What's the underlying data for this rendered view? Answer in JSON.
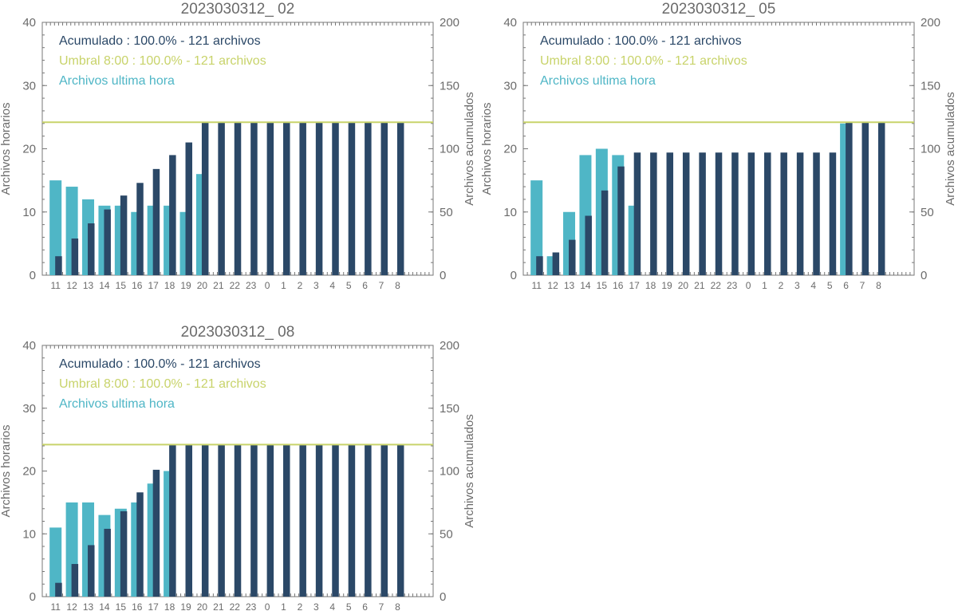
{
  "colors": {
    "hourly": "#4fb6c6",
    "cumulative": "#2b4867",
    "threshold": "#c8d36a",
    "axis": "#777777",
    "text": "#6b6b6b"
  },
  "chart_data": [
    {
      "type": "bar",
      "title": "2023030312_ 02",
      "ylabel": "Archivos horarios",
      "y2label": "Archivos acumulados",
      "ylim": [
        0,
        40
      ],
      "y2lim": [
        0,
        200
      ],
      "yticks": [
        "0",
        "10",
        "20",
        "30",
        "40"
      ],
      "y2ticks": [
        "0",
        "50",
        "100",
        "150",
        "200"
      ],
      "categories": [
        "11",
        "12",
        "13",
        "14",
        "15",
        "16",
        "17",
        "18",
        "19",
        "20",
        "21",
        "22",
        "23",
        "0",
        "1",
        "2",
        "3",
        "4",
        "5",
        "6",
        "7",
        "8"
      ],
      "legend": [
        {
          "text": "Acumulado : 100.0% - 121 archivos",
          "color": "#2b4867"
        },
        {
          "text": "Umbral 8:00 : 100.0% - 121 archivos",
          "color": "#c8d36a"
        },
        {
          "text": "Archivos ultima hora",
          "color": "#4fb6c6"
        }
      ],
      "threshold": 121,
      "series": [
        {
          "name": "Archivos ultima hora",
          "axis": "left",
          "values": [
            15,
            14,
            12,
            11,
            11,
            10,
            11,
            11,
            10,
            16,
            null,
            null,
            null,
            null,
            null,
            null,
            null,
            null,
            null,
            null,
            null,
            null
          ]
        },
        {
          "name": "Acumulado",
          "axis": "right",
          "values": [
            15,
            29,
            41,
            52,
            63,
            73,
            84,
            95,
            105,
            121,
            121,
            121,
            121,
            121,
            121,
            121,
            121,
            121,
            121,
            121,
            121,
            121
          ]
        }
      ]
    },
    {
      "type": "bar",
      "title": "2023030312_ 05",
      "ylabel": "Archivos horarios",
      "y2label": "Archivos acumulados",
      "ylim": [
        0,
        40
      ],
      "y2lim": [
        0,
        200
      ],
      "yticks": [
        "0",
        "10",
        "20",
        "30",
        "40"
      ],
      "y2ticks": [
        "0",
        "50",
        "100",
        "150",
        "200"
      ],
      "categories": [
        "11",
        "12",
        "13",
        "14",
        "15",
        "16",
        "17",
        "18",
        "19",
        "20",
        "21",
        "22",
        "23",
        "0",
        "1",
        "2",
        "3",
        "4",
        "5",
        "6",
        "7",
        "8"
      ],
      "legend": [
        {
          "text": "Acumulado : 100.0% - 121 archivos",
          "color": "#2b4867"
        },
        {
          "text": "Umbral 8:00 : 100.0% - 121 archivos",
          "color": "#c8d36a"
        },
        {
          "text": "Archivos ultima hora",
          "color": "#4fb6c6"
        }
      ],
      "threshold": 121,
      "series": [
        {
          "name": "Archivos ultima hora",
          "axis": "left",
          "values": [
            15,
            3,
            10,
            19,
            20,
            19,
            11,
            null,
            null,
            null,
            null,
            null,
            null,
            null,
            null,
            null,
            null,
            null,
            null,
            24,
            null,
            null
          ]
        },
        {
          "name": "Acumulado",
          "axis": "right",
          "values": [
            15,
            18,
            28,
            47,
            67,
            86,
            97,
            97,
            97,
            97,
            97,
            97,
            97,
            97,
            97,
            97,
            97,
            97,
            97,
            121,
            121,
            121
          ]
        }
      ]
    },
    {
      "type": "bar",
      "title": "2023030312_ 08",
      "ylabel": "Archivos horarios",
      "y2label": "Archivos acumulados",
      "ylim": [
        0,
        40
      ],
      "y2lim": [
        0,
        200
      ],
      "yticks": [
        "0",
        "10",
        "20",
        "30",
        "40"
      ],
      "y2ticks": [
        "0",
        "50",
        "100",
        "150",
        "200"
      ],
      "categories": [
        "11",
        "12",
        "13",
        "14",
        "15",
        "16",
        "17",
        "18",
        "19",
        "20",
        "21",
        "22",
        "23",
        "0",
        "1",
        "2",
        "3",
        "4",
        "5",
        "6",
        "7",
        "8"
      ],
      "legend": [
        {
          "text": "Acumulado : 100.0% - 121 archivos",
          "color": "#2b4867"
        },
        {
          "text": "Umbral 8:00 : 100.0% - 121 archivos",
          "color": "#c8d36a"
        },
        {
          "text": "Archivos ultima hora",
          "color": "#4fb6c6"
        }
      ],
      "threshold": 121,
      "series": [
        {
          "name": "Archivos ultima hora",
          "axis": "left",
          "values": [
            11,
            15,
            15,
            13,
            14,
            15,
            18,
            20,
            null,
            null,
            null,
            null,
            null,
            null,
            null,
            null,
            null,
            null,
            null,
            null,
            null,
            null
          ]
        },
        {
          "name": "Acumulado",
          "axis": "right",
          "values": [
            11,
            26,
            41,
            54,
            68,
            83,
            101,
            121,
            121,
            121,
            121,
            121,
            121,
            121,
            121,
            121,
            121,
            121,
            121,
            121,
            121,
            121
          ]
        }
      ]
    }
  ]
}
